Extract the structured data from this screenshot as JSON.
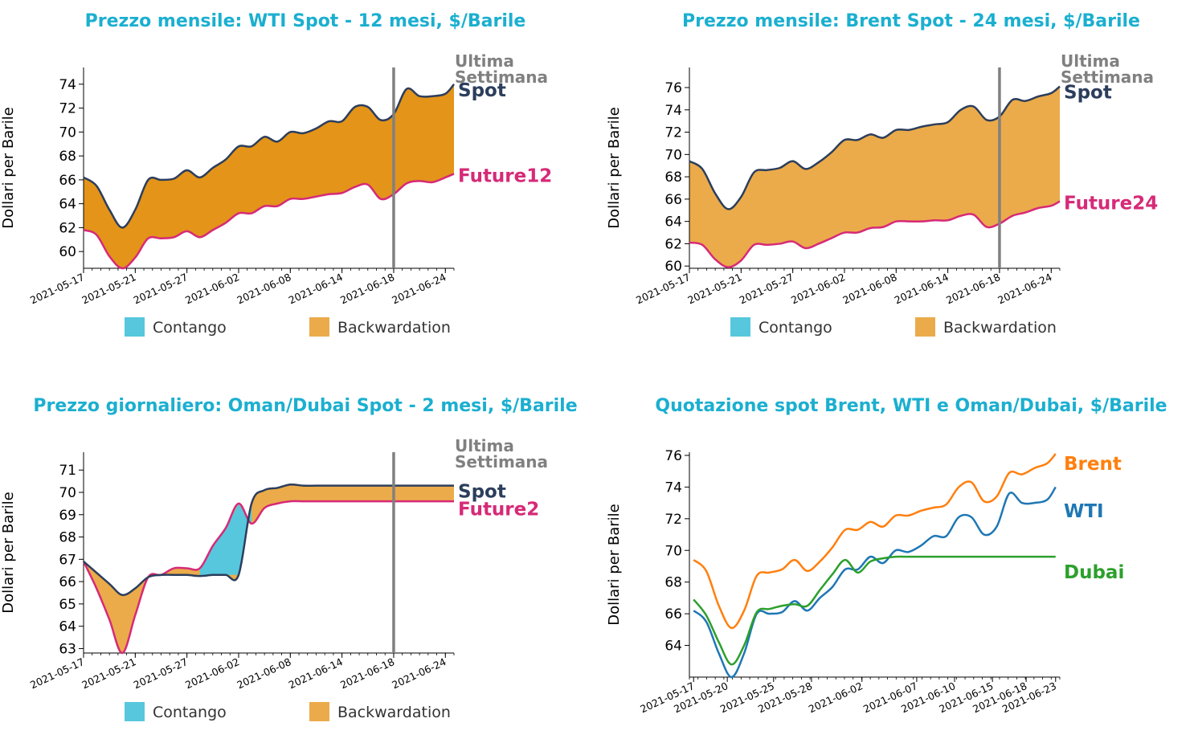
{
  "colors": {
    "title": "#1BAFD0",
    "spot": "#2C3E5C",
    "future": "#D62A77",
    "last_week_label": "#808080",
    "last_week_line": "#808080",
    "fill_dark": "#E39419",
    "fill_light": "#EBAB4A",
    "contango": "#57C7DD",
    "brent": "#FF7F0E",
    "wti": "#1F77B4",
    "dubai": "#2CA02C"
  },
  "legend": {
    "contango": "Contango",
    "backwardation": "Backwardation"
  },
  "chart_data": [
    {
      "id": "wti",
      "type": "area",
      "title": "Prezzo mensile: WTI Spot - 12 mesi, $/Barile",
      "ylabel": "Dollari per Barile",
      "ylim": [
        58.6,
        75.4
      ],
      "yticks": [
        60,
        62,
        64,
        66,
        68,
        70,
        72,
        74
      ],
      "xlim": [
        0,
        43
      ],
      "xticks": [
        {
          "t": 0,
          "label": "2021-05-17"
        },
        {
          "t": 6,
          "label": "2021-05-21"
        },
        {
          "t": 12,
          "label": "2021-05-27"
        },
        {
          "t": 18,
          "label": "2021-06-02"
        },
        {
          "t": 24,
          "label": "2021-06-08"
        },
        {
          "t": 30,
          "label": "2021-06-14"
        },
        {
          "t": 36,
          "label": "2021-06-18"
        },
        {
          "t": 42,
          "label": "2021-06-24"
        }
      ],
      "vline_t": 36,
      "vline_label_1": "Ultima",
      "vline_label_2": "Settimana",
      "spot_label": "Spot",
      "future_label": "Future12",
      "fill": "fill_dark",
      "t": [
        0,
        1.5,
        3,
        4.5,
        6,
        7.5,
        9,
        10.5,
        12,
        13.5,
        15,
        16.5,
        18,
        19.5,
        21,
        22.5,
        24,
        25.5,
        27,
        28.5,
        30,
        31.5,
        33,
        34.5,
        36,
        37.5,
        39,
        40.5,
        42,
        43
      ],
      "spot": [
        66.2,
        65.5,
        63.5,
        62.0,
        63.5,
        66.0,
        66.0,
        66.1,
        66.8,
        66.2,
        67.0,
        67.7,
        68.8,
        68.8,
        69.6,
        69.2,
        70.0,
        69.9,
        70.3,
        70.9,
        70.9,
        72.1,
        72.1,
        71.0,
        71.5,
        73.6,
        73.0,
        73.0,
        73.2,
        74.0
      ],
      "future": [
        61.8,
        61.4,
        59.6,
        58.6,
        59.5,
        61.1,
        61.1,
        61.2,
        61.7,
        61.2,
        61.8,
        62.4,
        63.2,
        63.2,
        63.8,
        63.8,
        64.4,
        64.4,
        64.6,
        64.8,
        64.9,
        65.4,
        65.6,
        64.4,
        64.8,
        65.7,
        65.9,
        65.8,
        66.2,
        66.5
      ]
    },
    {
      "id": "brent",
      "type": "area",
      "title": "Prezzo mensile: Brent Spot - 24 mesi, $/Barile",
      "ylabel": "Dollari per Barile",
      "ylim": [
        59.8,
        77.8
      ],
      "yticks": [
        60,
        62,
        64,
        66,
        68,
        70,
        72,
        74,
        76
      ],
      "xlim": [
        0,
        43
      ],
      "xticks": [
        {
          "t": 0,
          "label": "2021-05-17"
        },
        {
          "t": 6,
          "label": "2021-05-21"
        },
        {
          "t": 12,
          "label": "2021-05-27"
        },
        {
          "t": 18,
          "label": "2021-06-02"
        },
        {
          "t": 24,
          "label": "2021-06-08"
        },
        {
          "t": 30,
          "label": "2021-06-14"
        },
        {
          "t": 36,
          "label": "2021-06-18"
        },
        {
          "t": 42,
          "label": "2021-06-24"
        }
      ],
      "vline_t": 36,
      "vline_label_1": "Ultima",
      "vline_label_2": "Settimana",
      "spot_label": "Spot",
      "future_label": "Future24",
      "fill": "fill_light",
      "t": [
        0,
        1.5,
        3,
        4.5,
        6,
        7.5,
        9,
        10.5,
        12,
        13.5,
        15,
        16.5,
        18,
        19.5,
        21,
        22.5,
        24,
        25.5,
        27,
        28.5,
        30,
        31.5,
        33,
        34.5,
        36,
        37.5,
        39,
        40.5,
        42,
        43
      ],
      "spot": [
        69.4,
        68.7,
        66.5,
        65.1,
        66.2,
        68.4,
        68.6,
        68.8,
        69.4,
        68.7,
        69.3,
        70.2,
        71.3,
        71.3,
        71.8,
        71.5,
        72.2,
        72.2,
        72.5,
        72.7,
        72.9,
        74.0,
        74.3,
        73.1,
        73.4,
        74.9,
        74.8,
        75.2,
        75.5,
        76.1
      ],
      "future": [
        62.1,
        61.9,
        60.6,
        59.9,
        60.5,
        61.9,
        61.9,
        62.0,
        62.2,
        61.6,
        62.0,
        62.5,
        63.0,
        63.0,
        63.4,
        63.5,
        64.0,
        64.0,
        64.0,
        64.1,
        64.1,
        64.5,
        64.6,
        63.5,
        63.8,
        64.5,
        64.8,
        65.2,
        65.4,
        65.8
      ]
    },
    {
      "id": "dubai",
      "type": "area",
      "title": "Prezzo giornaliero: Oman/Dubai Spot - 2 mesi, $/Barile",
      "ylabel": "Dollari per Barile",
      "ylim": [
        62.8,
        71.8
      ],
      "yticks": [
        63,
        64,
        65,
        66,
        67,
        68,
        69,
        70,
        71
      ],
      "xlim": [
        0,
        43
      ],
      "xticks": [
        {
          "t": 0,
          "label": "2021-05-17"
        },
        {
          "t": 6,
          "label": "2021-05-21"
        },
        {
          "t": 12,
          "label": "2021-05-27"
        },
        {
          "t": 18,
          "label": "2021-06-02"
        },
        {
          "t": 24,
          "label": "2021-06-08"
        },
        {
          "t": 30,
          "label": "2021-06-14"
        },
        {
          "t": 36,
          "label": "2021-06-18"
        },
        {
          "t": 42,
          "label": "2021-06-24"
        }
      ],
      "vline_t": 36,
      "vline_label_1": "Ultima",
      "vline_label_2": "Settimana",
      "spot_label": "Spot",
      "future_label": "Future2",
      "fill": "fill_light",
      "t": [
        0,
        1.5,
        3,
        4.5,
        6,
        7.5,
        9,
        10.5,
        12,
        13.5,
        15,
        16.5,
        18,
        19.5,
        21,
        22.5,
        24,
        25.5,
        27,
        28.5,
        30,
        31.5,
        33,
        34.5,
        36,
        37.5,
        39,
        40.5,
        42,
        43
      ],
      "spot": [
        66.9,
        66.4,
        65.9,
        65.4,
        65.7,
        66.2,
        66.3,
        66.3,
        66.3,
        66.25,
        66.3,
        66.3,
        66.3,
        69.5,
        70.1,
        70.2,
        70.35,
        70.3,
        70.3,
        70.3,
        70.3,
        70.3,
        70.3,
        70.3,
        70.3,
        70.3,
        70.3,
        70.3,
        70.3,
        70.3
      ],
      "future": [
        66.9,
        65.7,
        64.3,
        62.8,
        64.5,
        66.2,
        66.3,
        66.6,
        66.6,
        66.6,
        67.6,
        68.4,
        69.5,
        68.6,
        69.3,
        69.5,
        69.6,
        69.6,
        69.6,
        69.6,
        69.6,
        69.6,
        69.6,
        69.6,
        69.6,
        69.6,
        69.6,
        69.6,
        69.6,
        69.6
      ]
    },
    {
      "id": "quotes",
      "type": "line",
      "title": "Quotazione spot Brent, WTI e Oman/Dubai, $/Barile",
      "ylabel": "Dollari per Barile",
      "ylim": [
        62.0,
        76.2
      ],
      "yticks": [
        64,
        66,
        68,
        70,
        72,
        74,
        76
      ],
      "xlim": [
        -0.5,
        43.5
      ],
      "xticks": [
        {
          "t": 0,
          "label": "2021-05-17"
        },
        {
          "t": 4,
          "label": "2021-05-20"
        },
        {
          "t": 9.5,
          "label": "2021-05-25"
        },
        {
          "t": 14,
          "label": "2021-05-28"
        },
        {
          "t": 20,
          "label": "2021-06-02"
        },
        {
          "t": 26.5,
          "label": "2021-06-07"
        },
        {
          "t": 31,
          "label": "2021-06-10"
        },
        {
          "t": 35.5,
          "label": "2021-06-15"
        },
        {
          "t": 39.5,
          "label": "2021-06-18"
        },
        {
          "t": 43,
          "label": "2021-06-23"
        }
      ],
      "t": [
        0,
        1.5,
        3,
        4.5,
        6,
        7.5,
        9,
        10.5,
        12,
        13.5,
        15,
        16.5,
        18,
        19.5,
        21,
        22.5,
        24,
        25.5,
        27,
        28.5,
        30,
        31.5,
        33,
        34.5,
        36,
        37.5,
        39,
        40.5,
        42,
        43
      ],
      "series": [
        {
          "name": "Brent",
          "color_key": "brent",
          "values": [
            69.4,
            68.7,
            66.5,
            65.1,
            66.2,
            68.4,
            68.6,
            68.8,
            69.4,
            68.7,
            69.3,
            70.2,
            71.3,
            71.3,
            71.8,
            71.5,
            72.2,
            72.2,
            72.5,
            72.7,
            72.9,
            74.0,
            74.3,
            73.1,
            73.4,
            74.9,
            74.8,
            75.2,
            75.5,
            76.1
          ]
        },
        {
          "name": "WTI",
          "color_key": "wti",
          "values": [
            66.2,
            65.5,
            63.5,
            62.0,
            63.5,
            66.0,
            66.0,
            66.1,
            66.8,
            66.2,
            67.0,
            67.7,
            68.8,
            68.8,
            69.6,
            69.2,
            70.0,
            69.9,
            70.3,
            70.9,
            70.9,
            72.1,
            72.1,
            71.0,
            71.5,
            73.6,
            73.0,
            73.0,
            73.2,
            74.0
          ]
        },
        {
          "name": "Dubai",
          "color_key": "dubai",
          "values": [
            66.9,
            65.9,
            64.2,
            62.8,
            64.0,
            66.1,
            66.3,
            66.5,
            66.6,
            66.5,
            67.5,
            68.5,
            69.4,
            68.6,
            69.3,
            69.5,
            69.6,
            69.6,
            69.6,
            69.6,
            69.6,
            69.6,
            69.6,
            69.6,
            69.6,
            69.6,
            69.6,
            69.6,
            69.6,
            69.6
          ]
        }
      ]
    }
  ]
}
